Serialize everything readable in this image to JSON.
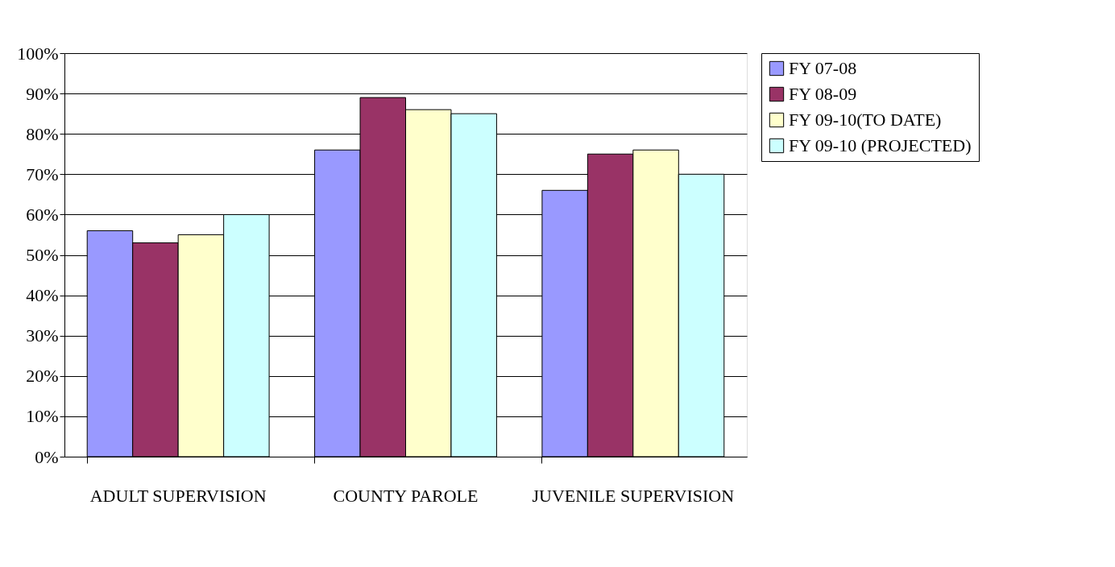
{
  "chart_data": {
    "type": "bar",
    "categories": [
      "ADULT SUPERVISION",
      "COUNTY PAROLE",
      "JUVENILE SUPERVISION"
    ],
    "series": [
      {
        "name": "FY 07-08",
        "color": "#9999ff",
        "values": [
          56,
          76,
          66
        ]
      },
      {
        "name": "FY 08-09",
        "color": "#993366",
        "values": [
          53,
          89,
          75
        ]
      },
      {
        "name": "FY 09-10(TO DATE)",
        "color": "#ffffcc",
        "values": [
          55,
          86,
          76
        ]
      },
      {
        "name": "FY 09-10 (PROJECTED)",
        "color": "#ccffff",
        "values": [
          60,
          85,
          70
        ]
      }
    ],
    "ylim": [
      0,
      100
    ],
    "yticks": [
      {
        "value": 0,
        "label": "0%"
      },
      {
        "value": 10,
        "label": "10%"
      },
      {
        "value": 20,
        "label": "20%"
      },
      {
        "value": 30,
        "label": "30%"
      },
      {
        "value": 40,
        "label": "40%"
      },
      {
        "value": 50,
        "label": "50%"
      },
      {
        "value": 60,
        "label": "60%"
      },
      {
        "value": 70,
        "label": "70%"
      },
      {
        "value": 80,
        "label": "80%"
      },
      {
        "value": 90,
        "label": "90%"
      },
      {
        "value": 100,
        "label": "100%"
      }
    ],
    "grid": true,
    "legend": "right"
  }
}
